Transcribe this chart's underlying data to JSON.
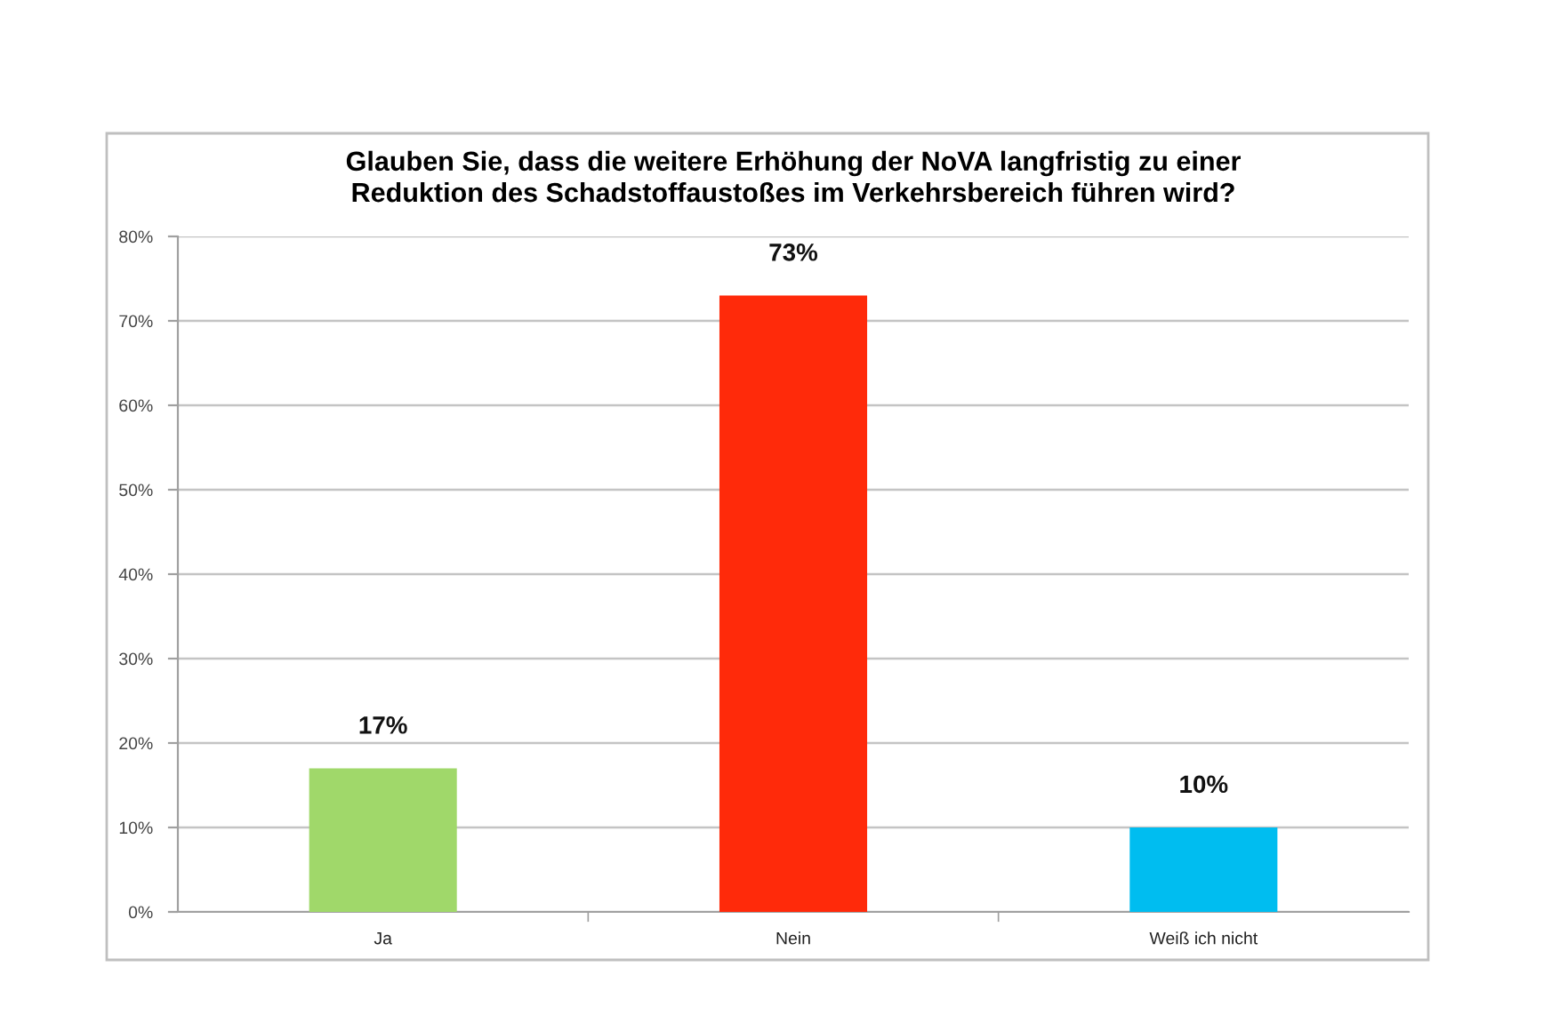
{
  "chart_data": {
    "type": "bar",
    "title": "Glauben Sie, dass die weitere Erhöhung der NoVA langfristig zu einer\nReduktion des Schadstoffaustoßes im Verkehrsbereich führen wird?",
    "categories": [
      "Ja",
      "Nein",
      "Weiß ich nicht"
    ],
    "values": [
      17,
      73,
      10
    ],
    "colors": [
      "#a0d86a",
      "#ff2a0a",
      "#00bdf0"
    ],
    "value_labels": [
      "17%",
      "73%",
      "10%"
    ],
    "ylim": [
      0,
      80
    ],
    "yticks": [
      {
        "value": 0,
        "label": "0%"
      },
      {
        "value": 10,
        "label": "10%"
      },
      {
        "value": 20,
        "label": "20%"
      },
      {
        "value": 30,
        "label": "30%"
      },
      {
        "value": 40,
        "label": "40%"
      },
      {
        "value": 50,
        "label": "50%"
      },
      {
        "value": 60,
        "label": "60%"
      },
      {
        "value": 70,
        "label": "70%"
      },
      {
        "value": 80,
        "label": "80%"
      }
    ],
    "grid": "y",
    "legend": false
  }
}
